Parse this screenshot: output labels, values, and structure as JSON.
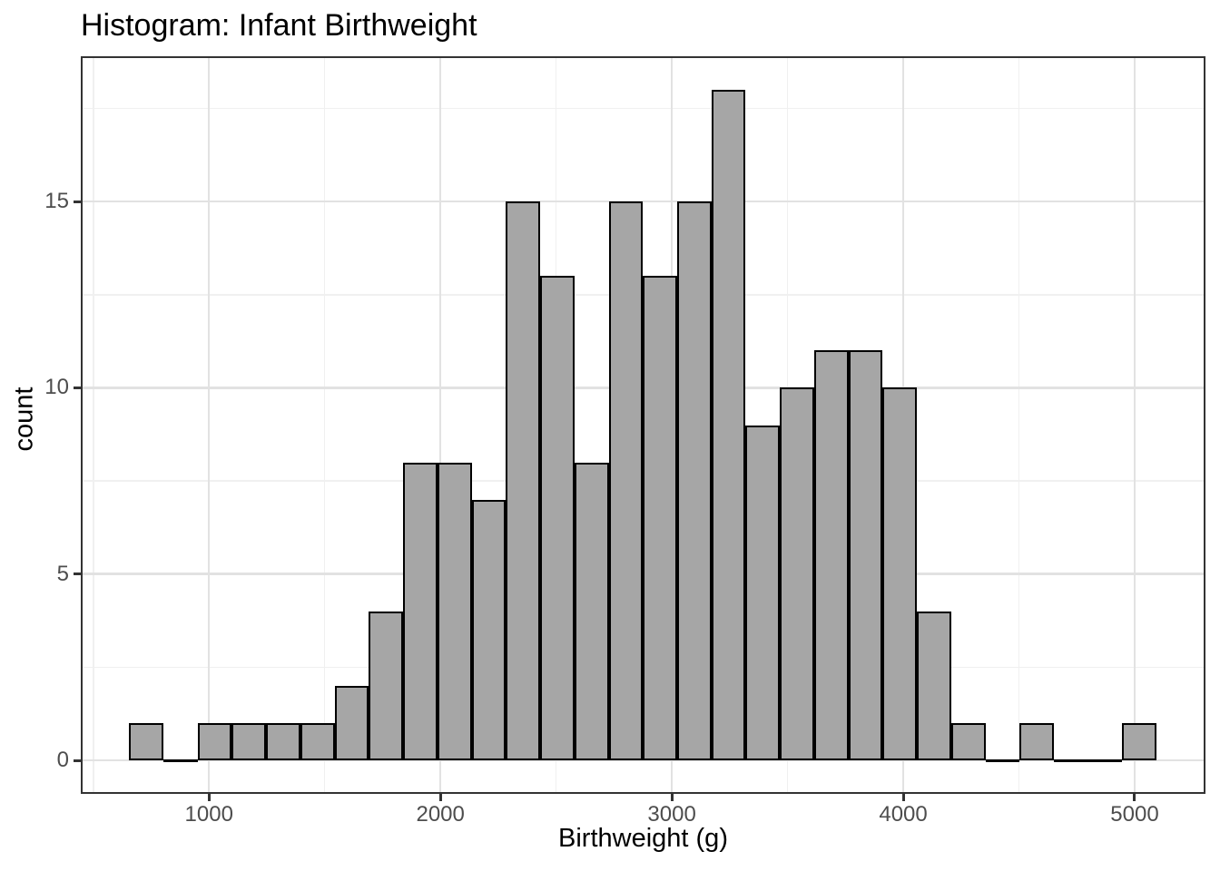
{
  "chart_data": {
    "type": "bar",
    "subtype": "histogram",
    "title": "Histogram: Infant Birthweight",
    "xlabel": "Birthweight (g)",
    "ylabel": "count",
    "bin_start": 655,
    "bin_width": 148,
    "counts": [
      1,
      0,
      1,
      1,
      1,
      1,
      2,
      4,
      8,
      8,
      7,
      15,
      13,
      8,
      15,
      13,
      15,
      18,
      9,
      10,
      11,
      11,
      10,
      4,
      1,
      0,
      1,
      0,
      0,
      1
    ],
    "total_n": 189,
    "x_ticks": [
      1000,
      2000,
      3000,
      4000,
      5000
    ],
    "x_tick_labels": [
      "1000",
      "2000",
      "3000",
      "4000",
      "5000"
    ],
    "y_ticks": [
      0,
      5,
      10,
      15
    ],
    "y_tick_labels": [
      "0",
      "5",
      "10",
      "15"
    ],
    "x_minor_breaks": [
      500,
      1500,
      2500,
      3500,
      4500
    ],
    "y_minor_breaks": [
      2.5,
      7.5,
      12.5,
      17.5
    ],
    "xlim": [
      446,
      5306
    ],
    "ylim": [
      -0.9,
      18.9
    ],
    "grid": true,
    "legend_position": "none",
    "colors": {
      "bar_fill": "#A6A6A6",
      "bar_stroke": "#000000",
      "grid_major": "#E2E2E2",
      "grid_minor": "#F0F0F0",
      "panel_border": "#333333",
      "tick_label": "#4D4D4D",
      "text": "#000000",
      "background": "#FFFFFF"
    }
  }
}
